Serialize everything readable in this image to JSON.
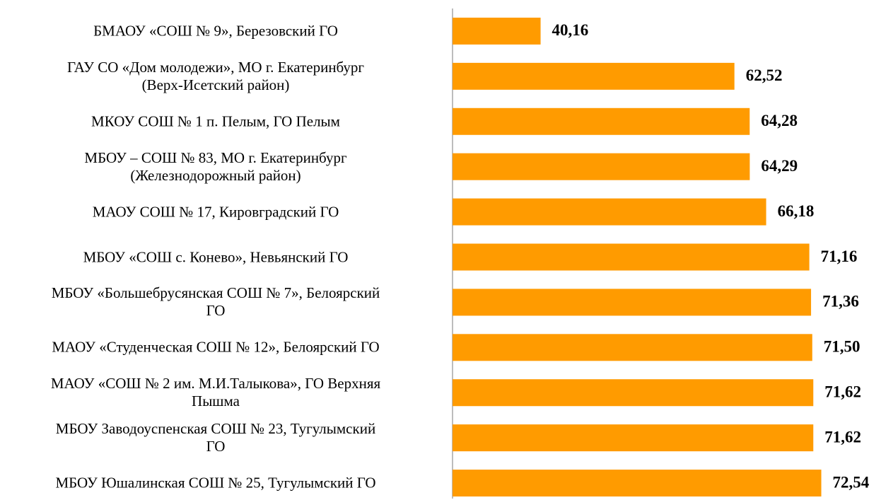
{
  "chart_data": {
    "type": "bar",
    "orientation": "horizontal",
    "color": "#ff9b00",
    "categories": [
      "БМАОУ  «СОШ № 9», Березовский ГО",
      "ГАУ СО «Дом молодежи», МО г. Екатеринбург\n(Верх-Исетский район)",
      "МКОУ СОШ № 1 п. Пелым, ГО Пелым",
      "МБОУ – СОШ № 83, МО г. Екатеринбург\n(Железнодорожный район)",
      "МАОУ  СОШ № 17, Кировградский ГО",
      "МБОУ «СОШ с. Конево», Невьянский ГО",
      "МБОУ «Большебрусянская СОШ № 7», Белоярский\nГО",
      "МАОУ  «Студенческая СОШ № 12», Белоярский ГО",
      "МАОУ  «СОШ № 2 им. М.И.Талыкова», ГО Верхняя\nПышма",
      "МБОУ Заводоуспенская СОШ № 23, Тугулымский\nГО",
      "МБОУ Юшалинская СОШ № 25, Тугулымский  ГО"
    ],
    "values": [
      40.16,
      62.52,
      64.28,
      64.29,
      66.18,
      71.16,
      71.36,
      71.5,
      71.62,
      71.62,
      72.54
    ],
    "value_labels": [
      "40,16",
      "62,52",
      "64,28",
      "64,29",
      "66,18",
      "71,16",
      "71,36",
      "71,50",
      "71,62",
      "71,62",
      "72,54"
    ],
    "xlim": [
      30,
      80
    ]
  }
}
